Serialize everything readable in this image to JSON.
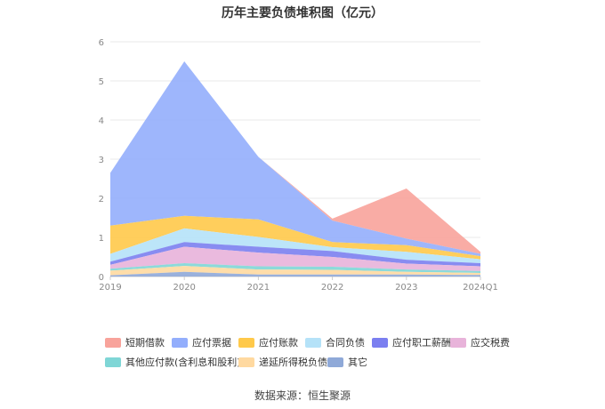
{
  "chart_data": {
    "type": "area",
    "title": "历年主要负债堆积图（亿元）",
    "categories": [
      "2019",
      "2020",
      "2021",
      "2022",
      "2023",
      "2024Q1"
    ],
    "ylim": [
      0,
      6
    ],
    "yticks": [
      "0",
      "1",
      "2",
      "3",
      "4",
      "5",
      "6"
    ],
    "grid": true,
    "legend_position": "bottom",
    "series": [
      {
        "name": "短期借款",
        "color": "#f8a39b",
        "values": [
          0,
          0,
          0,
          0.05,
          1.28,
          0.05
        ]
      },
      {
        "name": "应付票据",
        "color": "#93aefc",
        "values": [
          1.35,
          3.95,
          1.6,
          0.55,
          0.17,
          0.06
        ]
      },
      {
        "name": "应付账款",
        "color": "#ffc94a",
        "values": [
          0.72,
          0.32,
          0.45,
          0.13,
          0.17,
          0.08
        ]
      },
      {
        "name": "合同负债",
        "color": "#b5e2f8",
        "values": [
          0.2,
          0.35,
          0.25,
          0.1,
          0.2,
          0.1
        ]
      },
      {
        "name": "应付职工薪酬",
        "color": "#7b7ff0",
        "values": [
          0.08,
          0.12,
          0.15,
          0.15,
          0.1,
          0.08
        ]
      },
      {
        "name": "应交税费",
        "color": "#e8b3da",
        "values": [
          0.1,
          0.42,
          0.35,
          0.25,
          0.15,
          0.12
        ]
      },
      {
        "name": "其他应付款(含利息和股利)",
        "color": "#7fd6d6",
        "values": [
          0.05,
          0.07,
          0.08,
          0.08,
          0.06,
          0.05
        ]
      },
      {
        "name": "递延所得税负债",
        "color": "#ffd9a0",
        "values": [
          0.12,
          0.15,
          0.13,
          0.12,
          0.07,
          0.05
        ]
      },
      {
        "name": "其它",
        "color": "#8fa9d8",
        "values": [
          0.03,
          0.12,
          0.05,
          0.05,
          0.05,
          0.04
        ]
      }
    ]
  },
  "source_text": "数据来源：恒生聚源"
}
